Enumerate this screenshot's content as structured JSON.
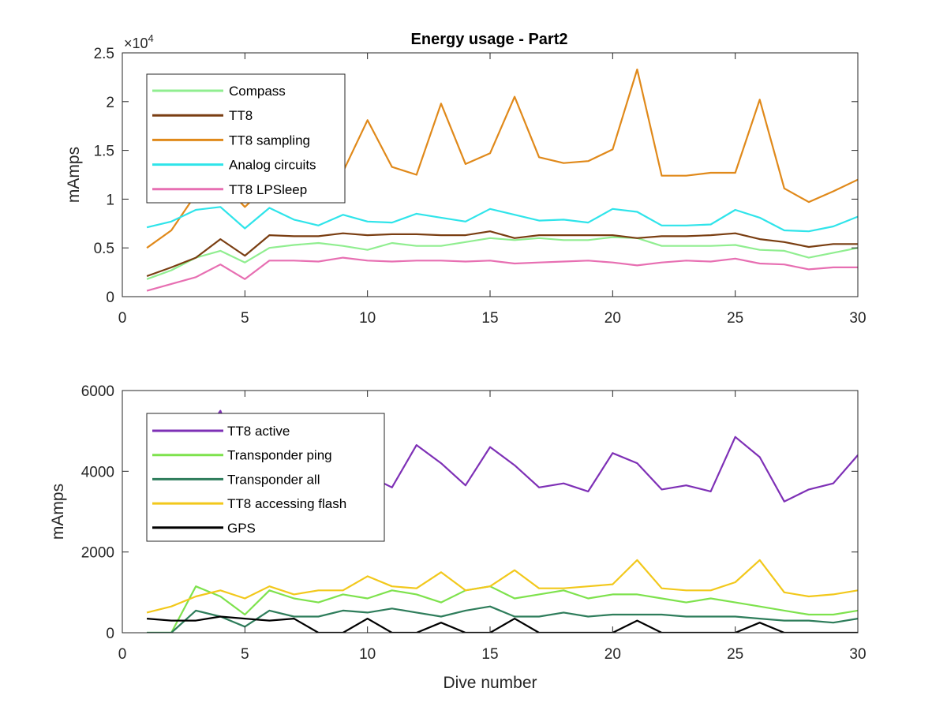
{
  "figure": {
    "title": "Energy usage - Part2"
  },
  "chart_data": [
    {
      "type": "line",
      "title": "Energy usage - Part2",
      "xlabel": "",
      "ylabel": "mAmps",
      "xlim": [
        0,
        30
      ],
      "ylim": [
        0,
        25000
      ],
      "xticks": [
        0,
        5,
        10,
        15,
        20,
        25,
        30
      ],
      "yticks": [
        0,
        5000,
        10000,
        15000,
        20000,
        25000
      ],
      "ytick_labels": [
        "0",
        "0.5",
        "1",
        "1.5",
        "2",
        "2.5"
      ],
      "exponent_label": "×10",
      "exponent_power": "4",
      "grid": false,
      "legend_position": "top-left",
      "x": [
        1,
        2,
        3,
        4,
        5,
        6,
        7,
        8,
        9,
        10,
        11,
        12,
        13,
        14,
        15,
        16,
        17,
        18,
        19,
        20,
        21,
        22,
        23,
        24,
        25,
        26,
        27,
        28,
        29,
        30
      ],
      "series": [
        {
          "name": "Compass",
          "color": "#90ee90",
          "values": [
            1800,
            2700,
            4000,
            4700,
            3500,
            5000,
            5300,
            5500,
            5200,
            4800,
            5500,
            5200,
            5200,
            5600,
            6000,
            5800,
            6000,
            5800,
            5800,
            6100,
            6000,
            5200,
            5200,
            5200,
            5300,
            4800,
            4700,
            4000,
            4500,
            5000
          ]
        },
        {
          "name": "TT8",
          "color": "#7a3e12",
          "values": [
            2100,
            3000,
            4000,
            5900,
            4200,
            6300,
            6200,
            6200,
            6500,
            6300,
            6400,
            6400,
            6300,
            6300,
            6700,
            6000,
            6300,
            6300,
            6300,
            6300,
            6000,
            6200,
            6200,
            6300,
            6500,
            5900,
            5600,
            5100,
            5400,
            5400
          ]
        },
        {
          "name": "TT8 sampling",
          "color": "#e0891a",
          "values": [
            5000,
            6800,
            10500,
            11800,
            9200,
            11600,
            12000,
            12500,
            12800,
            18100,
            13300,
            12500,
            19800,
            13600,
            14700,
            20500,
            14300,
            13700,
            13900,
            15100,
            23300,
            12400,
            12400,
            12700,
            12700,
            20200,
            11100,
            9700,
            10800,
            12000
          ]
        },
        {
          "name": "Analog circuits",
          "color": "#2fe4ea",
          "values": [
            7100,
            7700,
            8900,
            9200,
            7000,
            9100,
            7900,
            7300,
            8400,
            7700,
            7600,
            8500,
            8100,
            7700,
            9000,
            8400,
            7800,
            7900,
            7600,
            9000,
            8700,
            7300,
            7300,
            7400,
            8900,
            8100,
            6800,
            6700,
            7200,
            8200
          ]
        },
        {
          "name": "TT8 LPSleep",
          "color": "#e76fb2",
          "values": [
            600,
            1300,
            2000,
            3300,
            1800,
            3700,
            3700,
            3600,
            4000,
            3700,
            3600,
            3700,
            3700,
            3600,
            3700,
            3400,
            3500,
            3600,
            3700,
            3500,
            3200,
            3500,
            3700,
            3600,
            3900,
            3400,
            3300,
            2800,
            3000,
            3000
          ]
        }
      ]
    },
    {
      "type": "line",
      "title": "",
      "xlabel": "Dive number",
      "ylabel": "mAmps",
      "xlim": [
        0,
        30
      ],
      "ylim": [
        0,
        6000
      ],
      "xticks": [
        0,
        5,
        10,
        15,
        20,
        25,
        30
      ],
      "yticks": [
        0,
        2000,
        4000,
        6000
      ],
      "ytick_labels": [
        "0",
        "2000",
        "4000",
        "6000"
      ],
      "grid": false,
      "legend_position": "top-left",
      "x": [
        1,
        2,
        3,
        4,
        5,
        6,
        7,
        8,
        9,
        10,
        11,
        12,
        13,
        14,
        15,
        16,
        17,
        18,
        19,
        20,
        21,
        22,
        23,
        24,
        25,
        26,
        27,
        28,
        29,
        30
      ],
      "series": [
        {
          "name": "TT8 active",
          "color": "#7e30b6",
          "values": [
            4000,
            4200,
            4600,
            5500,
            3900,
            4300,
            4400,
            4100,
            4100,
            3900,
            3600,
            4650,
            4200,
            3650,
            4600,
            4150,
            3600,
            3700,
            3500,
            4450,
            4200,
            3550,
            3650,
            3500,
            4850,
            4350,
            3250,
            3550,
            3700,
            4400
          ]
        },
        {
          "name": "Transponder ping",
          "color": "#7ee24d",
          "values": [
            0,
            0,
            1150,
            900,
            450,
            1050,
            850,
            750,
            950,
            850,
            1050,
            950,
            750,
            1050,
            1150,
            850,
            950,
            1050,
            850,
            950,
            950,
            850,
            750,
            850,
            750,
            650,
            550,
            450,
            450,
            550
          ]
        },
        {
          "name": "Transponder all",
          "color": "#2e7d5b",
          "values": [
            0,
            0,
            550,
            400,
            150,
            550,
            400,
            400,
            550,
            500,
            600,
            500,
            400,
            550,
            650,
            400,
            400,
            500,
            400,
            450,
            450,
            450,
            400,
            400,
            400,
            350,
            300,
            300,
            250,
            350
          ]
        },
        {
          "name": "TT8 accessing flash",
          "color": "#f2c81b",
          "values": [
            500,
            650,
            900,
            1050,
            850,
            1150,
            950,
            1050,
            1050,
            1400,
            1150,
            1100,
            1500,
            1050,
            1150,
            1550,
            1100,
            1100,
            1150,
            1200,
            1800,
            1100,
            1050,
            1050,
            1250,
            1800,
            1000,
            900,
            950,
            1050
          ]
        },
        {
          "name": "GPS",
          "color": "#000000",
          "values": [
            350,
            300,
            300,
            400,
            350,
            300,
            350,
            0,
            0,
            350,
            0,
            0,
            250,
            0,
            0,
            350,
            0,
            0,
            0,
            0,
            300,
            0,
            0,
            0,
            0,
            250,
            0,
            0,
            0,
            0
          ]
        }
      ]
    }
  ]
}
